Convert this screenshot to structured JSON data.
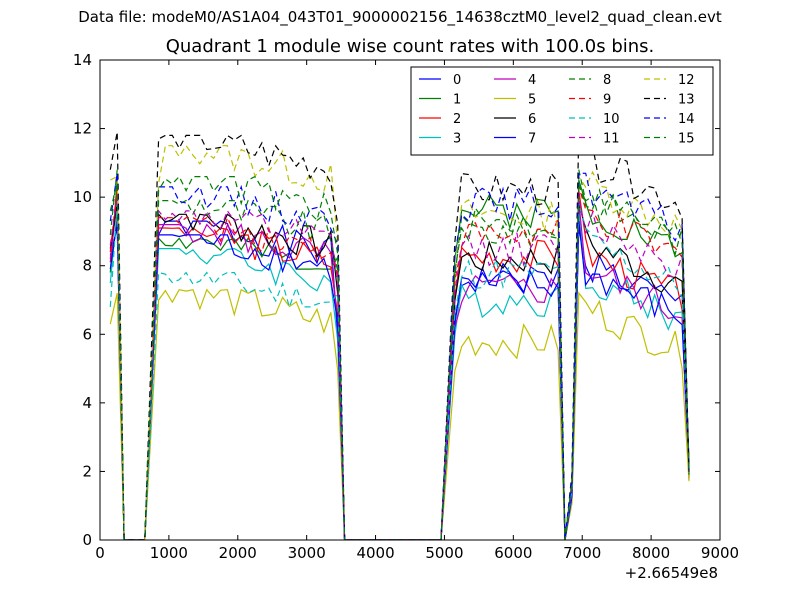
{
  "header": {
    "suptitle": "Data file: modeM0/AS1A04_043T01_9000002156_14638cztM0_level2_quad_clean.evt",
    "title": "Quadrant 1 module wise count rates with 100.0s bins."
  },
  "chart_data": {
    "type": "line",
    "title": "Quadrant 1 module wise count rates with 100.0s bins.",
    "xlabel": "",
    "ylabel": "",
    "x_offset_label": "+2.66549e8",
    "xlim": [
      0,
      9000
    ],
    "ylim": [
      0,
      14
    ],
    "xticks": [
      0,
      1000,
      2000,
      3000,
      4000,
      5000,
      6000,
      7000,
      8000,
      9000
    ],
    "yticks": [
      0,
      2,
      4,
      6,
      8,
      10,
      12,
      14
    ],
    "grid": false,
    "legend_position": "top-right",
    "legend_columns": 4,
    "x": [
      150,
      250,
      350,
      650,
      850,
      950,
      1050,
      1150,
      1250,
      1350,
      1450,
      1550,
      1650,
      1750,
      1850,
      1950,
      2050,
      2150,
      2250,
      2350,
      2450,
      2550,
      2650,
      2750,
      2850,
      2950,
      3050,
      3150,
      3250,
      3350,
      3450,
      3550,
      4950,
      5150,
      5250,
      5350,
      5450,
      5550,
      5650,
      5750,
      5850,
      5950,
      6050,
      6150,
      6250,
      6350,
      6450,
      6550,
      6650,
      6750,
      6850,
      6950,
      7050,
      7150,
      7250,
      7350,
      7450,
      7550,
      7650,
      7750,
      7850,
      7950,
      8050,
      8150,
      8250,
      8350,
      8450,
      8550
    ],
    "series": [
      {
        "name": "0",
        "color": "#0000ff",
        "style": "solid",
        "level1": 8.3,
        "level2": 6.1,
        "level3": 7.6,
        "level4": 6.6,
        "spike": 9.1,
        "seed": 1
      },
      {
        "name": "1",
        "color": "#008000",
        "style": "solid",
        "level1": 7.8,
        "level2": 8.5,
        "level3": 9.6,
        "level4": 8.2,
        "spike": 10.5,
        "seed": 2
      },
      {
        "name": "2",
        "color": "#ff0000",
        "style": "solid",
        "level1": 8.1,
        "level2": 6.8,
        "level3": 8.3,
        "level4": 6.9,
        "spike": 10.2,
        "seed": 3
      },
      {
        "name": "3",
        "color": "#00bfbf",
        "style": "solid",
        "level1": 7.5,
        "level2": 6.0,
        "level3": 7.0,
        "level4": 6.2,
        "spike": 9.6,
        "seed": 4
      },
      {
        "name": "4",
        "color": "#bf00bf",
        "style": "solid",
        "level1": 8.2,
        "level2": 6.5,
        "level3": 7.3,
        "level4": 6.4,
        "spike": 9.9,
        "seed": 5
      },
      {
        "name": "5",
        "color": "#bfbf00",
        "style": "solid",
        "level1": 6.3,
        "level2": 5.1,
        "level3": 5.8,
        "level4": 5.3,
        "spike": 7.2,
        "seed": 6
      },
      {
        "name": "6",
        "color": "#000000",
        "style": "solid",
        "level1": 8.5,
        "level2": 7.4,
        "level3": 8.2,
        "level4": 7.2,
        "spike": 9.8,
        "seed": 7
      },
      {
        "name": "7",
        "color": "#0000ff",
        "style": "solid",
        "level1": 7.9,
        "level2": 6.6,
        "level3": 7.4,
        "level4": 6.3,
        "spike": 9.3,
        "seed": 8
      },
      {
        "name": "8",
        "color": "#008000",
        "style": "dashed",
        "level1": 8.9,
        "level2": 8.1,
        "level3": 9.0,
        "level4": 8.5,
        "spike": 10.8,
        "seed": 9
      },
      {
        "name": "9",
        "color": "#ff0000",
        "style": "dashed",
        "level1": 8.4,
        "level2": 8.0,
        "level3": 8.9,
        "level4": 8.0,
        "spike": 10.3,
        "seed": 10
      },
      {
        "name": "10",
        "color": "#00bfbf",
        "style": "dashed",
        "level1": 6.8,
        "level2": 7.4,
        "level3": 7.8,
        "level4": 7.2,
        "spike": 9.8,
        "seed": 11
      },
      {
        "name": "11",
        "color": "#bf00bf",
        "style": "dashed",
        "level1": 8.6,
        "level2": 7.8,
        "level3": 8.5,
        "level4": 7.8,
        "spike": 10.0,
        "seed": 12
      },
      {
        "name": "12",
        "color": "#bfbf00",
        "style": "dashed",
        "level1": 10.5,
        "level2": 8.9,
        "level3": 9.5,
        "level4": 8.9,
        "spike": 10.6,
        "seed": 13
      },
      {
        "name": "13",
        "color": "#000000",
        "style": "dashed",
        "level1": 10.8,
        "level2": 9.5,
        "level3": 10.2,
        "level4": 9.6,
        "spike": 11.9,
        "seed": 14
      },
      {
        "name": "14",
        "color": "#0000ff",
        "style": "dashed",
        "level1": 9.3,
        "level2": 8.9,
        "level3": 9.8,
        "level4": 8.8,
        "spike": 10.7,
        "seed": 15
      },
      {
        "name": "15",
        "color": "#008000",
        "style": "dashed",
        "level1": 9.6,
        "level2": 8.6,
        "level3": 9.2,
        "level4": 8.6,
        "spike": 10.4,
        "seed": 16
      }
    ]
  }
}
